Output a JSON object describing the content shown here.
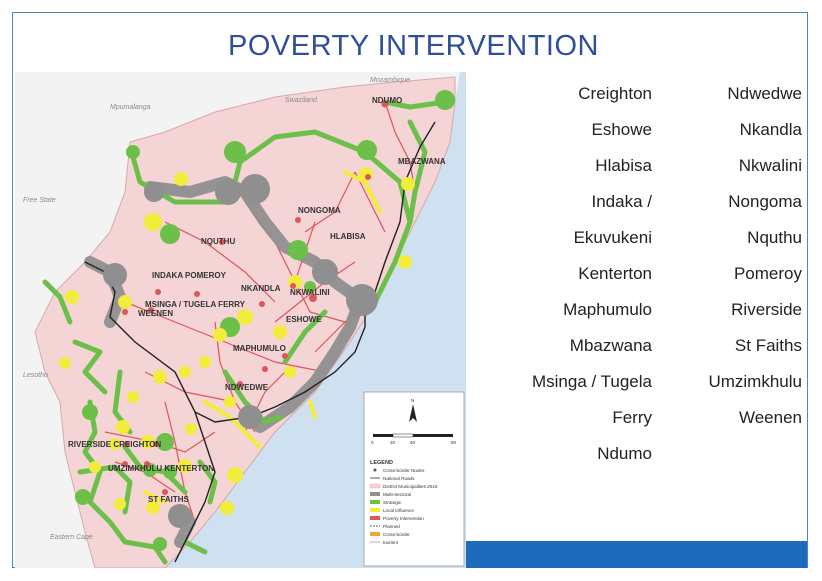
{
  "title": "POVERTY INTERVENTION",
  "areas_left": [
    "Creighton",
    "Eshowe",
    "Hlabisa",
    "Indaka /",
    "Ekuvukeni",
    "Kenterton",
    "Maphumulo",
    "Mbazwana",
    "Msinga / Tugela",
    "Ferry",
    "Ndumo"
  ],
  "areas_right": [
    "Ndwedwe",
    "Nkandla",
    "Nkwalini",
    "Nongoma",
    "Nquthu",
    "Pomeroy",
    "Riverside",
    "St Faiths",
    "Umzimkhulu",
    "Weenen"
  ],
  "map": {
    "town_labels": [
      "NDUMO",
      "MBAZWANA",
      "NONGOMA",
      "HLABISA",
      "NQUTHU",
      "INDAKA POMEROY",
      "NKANDLA",
      "NKWALINI",
      "MSINGA / TUGELA FERRY",
      "WEENEN",
      "ESHOWE",
      "MAPHUMULO",
      "NDWEDWE",
      "RIVERSIDE CREIGHTON",
      "UMZIMKHULU KENTERTON",
      "ST FAITHS"
    ],
    "region_labels": [
      "Mozambique",
      "Swaziland",
      "Mpumalanga",
      "Free State",
      "Lesotho",
      "Eastern Cape"
    ],
    "colors": {
      "green": "#6cc04a",
      "yellow": "#f2ec3a",
      "grey": "#8f8f8f",
      "red_road": "#e0555a",
      "district": "#f2c9c9",
      "sea": "#c9dcef"
    },
    "legend": {
      "north": "N",
      "scale": [
        "0",
        "20",
        "40",
        "80"
      ],
      "title": "LEGEND",
      "items": [
        "Cross-border Nodes",
        "National Roads",
        "District Municipalities 2016",
        "Multi-Sectoral",
        "Strategic",
        "Local Influence",
        "Poverty Intervention",
        "Planned",
        "Cross-border",
        "tourism"
      ]
    }
  }
}
